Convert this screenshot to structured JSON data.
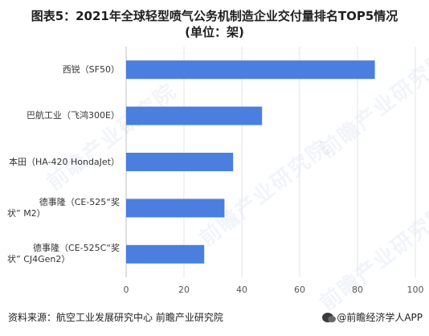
{
  "title": {
    "prefix": "图表5：",
    "line1": "2021年全球轻型喷气公务机制造企业交付量排名TOP5情况",
    "line2": "(单位：架)"
  },
  "watermark": "前瞻产业研究院",
  "footer": {
    "source": "资料来源：航空工业发展研究中心 前瞻产业研究院",
    "right": "@前瞻经济学人APP"
  },
  "chart_data": {
    "type": "bar",
    "orientation": "horizontal",
    "categories": [
      "西锐（SF50）",
      "巴航工业（飞鸿300E）",
      "本田（HA-420 HondaJet）",
      "德事隆（CE-525“奖状” M2）",
      "德事隆（CE-525C“奖状” CJ4Gen2）"
    ],
    "category_lines": [
      [
        "西锐（SF50）"
      ],
      [
        "巴航工业（飞鸿300E）"
      ],
      [
        "本田（HA-420 HondaJet）"
      ],
      [
        "德事隆（CE-525“奖",
        "状” M2）"
      ],
      [
        "德事隆（CE-525C“奖",
        "状” CJ4Gen2）"
      ]
    ],
    "values": [
      86,
      47,
      37,
      34,
      27
    ],
    "xlim": [
      0,
      100
    ],
    "xticks": [
      0,
      20,
      40,
      60,
      80,
      100
    ],
    "grid": true,
    "bar_color": "#4a7fe0"
  }
}
